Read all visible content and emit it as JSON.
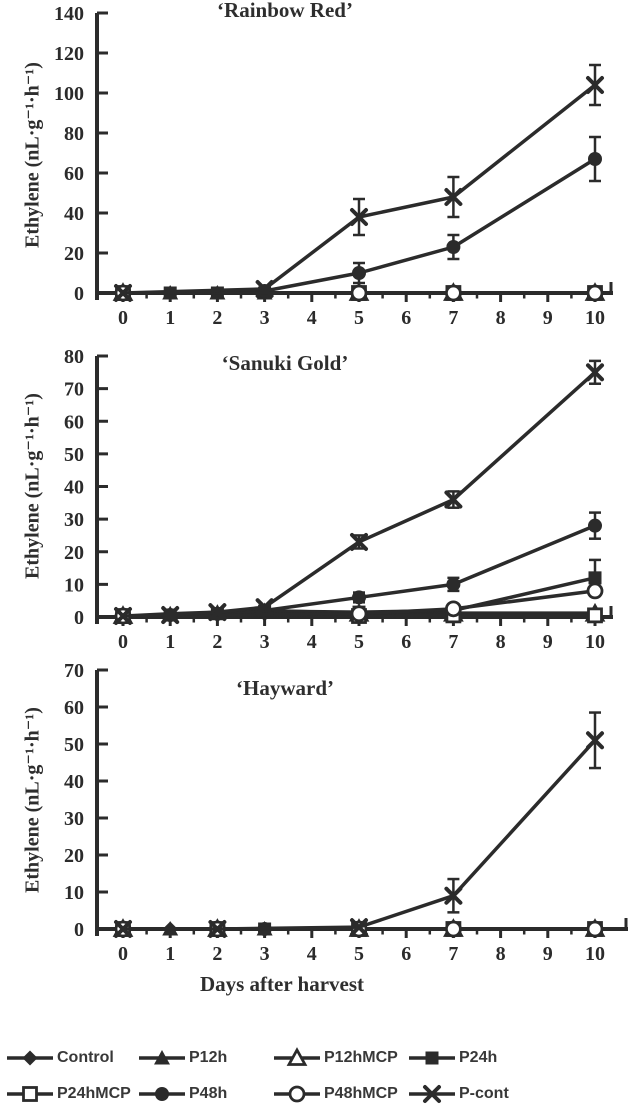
{
  "page": {
    "background": "#ffffff",
    "ink": "#2b2b2b",
    "label_color": "#383838"
  },
  "chart_data": [
    {
      "type": "line",
      "title": "‘Rainbow Red’",
      "ylabel": "Ethylene (nL·g⁻¹·h⁻¹)",
      "xlabel": "",
      "ylim": [
        0,
        140
      ],
      "ystep": 20,
      "yticks": [
        0,
        20,
        40,
        60,
        80,
        100,
        120,
        140
      ],
      "xlim": [
        0,
        10
      ],
      "xticks": [
        0,
        1,
        2,
        3,
        4,
        5,
        6,
        7,
        8,
        9,
        10
      ],
      "grid": false,
      "x": [
        0,
        1,
        2,
        3,
        5,
        7,
        10
      ],
      "series": [
        {
          "name": "Control",
          "marker": "diamond-filled",
          "values": [
            0,
            0,
            0,
            0,
            0,
            0,
            0
          ]
        },
        {
          "name": "P12h",
          "marker": "triangle-filled",
          "values": [
            0,
            0,
            0,
            0,
            0,
            0,
            0
          ]
        },
        {
          "name": "P12hMCP",
          "marker": "triangle-open",
          "values": [
            0,
            null,
            null,
            null,
            0,
            0,
            0
          ]
        },
        {
          "name": "P24h",
          "marker": "square-filled",
          "values": [
            0,
            0,
            0,
            0,
            null,
            null,
            null
          ]
        },
        {
          "name": "P24hMCP",
          "marker": "square-open",
          "values": [
            0,
            null,
            null,
            null,
            0,
            0,
            0
          ]
        },
        {
          "name": "P48h",
          "marker": "circle-filled",
          "values": [
            0,
            null,
            null,
            1,
            10,
            23,
            67
          ],
          "errors": [
            0,
            0,
            0,
            0,
            5,
            6,
            11
          ]
        },
        {
          "name": "P48hMCP",
          "marker": "circle-open",
          "values": [
            0,
            null,
            null,
            null,
            0,
            0,
            0
          ]
        },
        {
          "name": "P-cont",
          "marker": "x-cross",
          "values": [
            0,
            null,
            null,
            2,
            38,
            48,
            104
          ],
          "errors": [
            0,
            0,
            0,
            0,
            9,
            10,
            10
          ]
        }
      ]
    },
    {
      "type": "line",
      "title": "‘Sanuki Gold’",
      "ylabel": "Ethylene (nL·g⁻¹·h⁻¹)",
      "xlabel": "",
      "ylim": [
        0,
        80
      ],
      "ystep": 10,
      "yticks": [
        0,
        10,
        20,
        30,
        40,
        50,
        60,
        70,
        80
      ],
      "xlim": [
        0,
        10
      ],
      "xticks": [
        0,
        1,
        2,
        3,
        4,
        5,
        6,
        7,
        8,
        9,
        10
      ],
      "grid": false,
      "x": [
        0,
        1,
        2,
        3,
        5,
        7,
        10
      ],
      "series": [
        {
          "name": "Control",
          "marker": "diamond-filled",
          "values": [
            0.3,
            0.4,
            0.6,
            1,
            0.8,
            1,
            1
          ]
        },
        {
          "name": "P12h",
          "marker": "triangle-filled",
          "values": [
            0.3,
            1,
            1.5,
            2,
            1.2,
            1.2,
            1.2
          ]
        },
        {
          "name": "P12hMCP",
          "marker": "triangle-open",
          "values": [
            0.3,
            null,
            null,
            null,
            1,
            1,
            1
          ]
        },
        {
          "name": "P24h",
          "marker": "square-filled",
          "values": [
            0.3,
            0.6,
            1,
            1.8,
            1.5,
            2,
            12
          ],
          "errors": [
            0,
            0,
            0,
            0,
            0,
            0,
            5.5
          ]
        },
        {
          "name": "P24hMCP",
          "marker": "square-open",
          "values": [
            0.3,
            null,
            null,
            null,
            0.3,
            0.5,
            0.5
          ]
        },
        {
          "name": "P48h",
          "marker": "circle-filled",
          "values": [
            0.3,
            0.6,
            1,
            2,
            6,
            10,
            28
          ],
          "errors": [
            0,
            0,
            0,
            0,
            1.5,
            2,
            4
          ]
        },
        {
          "name": "P48hMCP",
          "marker": "circle-open",
          "values": [
            0.3,
            null,
            null,
            null,
            1,
            2.5,
            8
          ],
          "errors": [
            0,
            0,
            0,
            0,
            0,
            0,
            1.5
          ]
        },
        {
          "name": "P-cont",
          "marker": "x-cross",
          "values": [
            0.3,
            0.6,
            1.5,
            3,
            23,
            36,
            75
          ],
          "errors": [
            0,
            0,
            0,
            0,
            2,
            2.5,
            3.5
          ]
        }
      ]
    },
    {
      "type": "line",
      "title": "‘Hayward’",
      "ylabel": "Ethylene (nL·g⁻¹·h⁻¹)",
      "xlabel": "Days after harvest",
      "ylim": [
        0,
        70
      ],
      "ystep": 10,
      "yticks": [
        0,
        10,
        20,
        30,
        40,
        50,
        60,
        70
      ],
      "xlim": [
        0,
        10
      ],
      "xticks": [
        0,
        1,
        2,
        3,
        4,
        5,
        6,
        7,
        8,
        9,
        10
      ],
      "grid": false,
      "x": [
        0,
        1,
        2,
        3,
        5,
        7,
        10
      ],
      "series": [
        {
          "name": "Control",
          "marker": "diamond-filled",
          "values": [
            0,
            0,
            0,
            0,
            0,
            0,
            0
          ]
        },
        {
          "name": "P12h",
          "marker": "triangle-filled",
          "values": [
            0,
            0,
            0,
            0,
            0,
            0,
            0
          ]
        },
        {
          "name": "P12hMCP",
          "marker": "triangle-open",
          "values": [
            0,
            null,
            0,
            null,
            0,
            0,
            0
          ]
        },
        {
          "name": "P24h",
          "marker": "square-filled",
          "values": [
            0,
            null,
            0,
            0,
            0,
            0,
            0
          ]
        },
        {
          "name": "P24hMCP",
          "marker": "square-open",
          "values": [
            0,
            null,
            0,
            null,
            0,
            0,
            0
          ]
        },
        {
          "name": "P48h",
          "marker": "circle-filled",
          "values": [
            0,
            null,
            0,
            0,
            0,
            0,
            0
          ]
        },
        {
          "name": "P48hMCP",
          "marker": "circle-open",
          "values": [
            0,
            null,
            0,
            null,
            0,
            0,
            0
          ]
        },
        {
          "name": "P-cont",
          "marker": "x-cross",
          "values": [
            0,
            null,
            0,
            null,
            0.5,
            9,
            51
          ],
          "errors": [
            0,
            0,
            0,
            0,
            0,
            4.5,
            7.5
          ]
        }
      ]
    }
  ],
  "legend": {
    "items": [
      {
        "label": "Control",
        "marker": "diamond-filled"
      },
      {
        "label": "P12h",
        "marker": "triangle-filled"
      },
      {
        "label": "P12hMCP",
        "marker": "triangle-open"
      },
      {
        "label": "P24h",
        "marker": "square-filled"
      },
      {
        "label": "P24hMCP",
        "marker": "square-open"
      },
      {
        "label": "P48h",
        "marker": "circle-filled"
      },
      {
        "label": "P48hMCP",
        "marker": "circle-open"
      },
      {
        "label": "P-cont",
        "marker": "x-cross"
      }
    ]
  }
}
